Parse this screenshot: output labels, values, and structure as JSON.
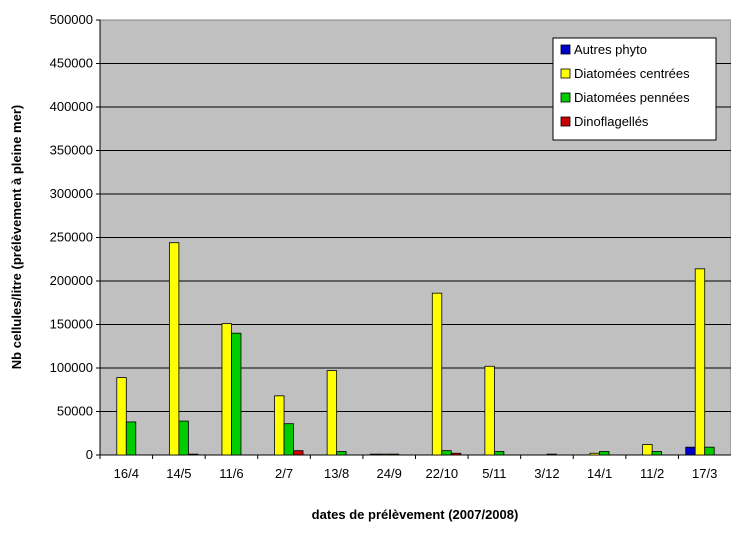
{
  "chart_data": {
    "type": "bar",
    "title": "",
    "xlabel": "dates de prélèvement (2007/2008)",
    "ylabel": "Nb cellules/litre (prélèvement à pleine mer)",
    "ylim": [
      0,
      500000
    ],
    "yticks": [
      "0",
      "50000",
      "100000",
      "150000",
      "200000",
      "250000",
      "300000",
      "350000",
      "400000",
      "450000",
      "500000"
    ],
    "categories": [
      "16/4",
      "14/5",
      "11/6",
      "2/7",
      "13/8",
      "24/9",
      "22/10",
      "5/11",
      "3/12",
      "14/1",
      "11/2",
      "17/3"
    ],
    "grid": true,
    "legend_position": "top-right",
    "series": [
      {
        "name": "Autres phyto",
        "color": "#0000cc",
        "values": [
          0,
          0,
          0,
          0,
          0,
          1000,
          0,
          0,
          0,
          0,
          0,
          9000
        ]
      },
      {
        "name": "Diatomées centrées",
        "color": "#ffff00",
        "values": [
          89000,
          244000,
          151000,
          68000,
          97000,
          1000,
          186000,
          102000,
          0,
          2000,
          12000,
          214000
        ]
      },
      {
        "name": "Diatomées pennées",
        "color": "#00cc00",
        "values": [
          38000,
          39000,
          140000,
          36000,
          4000,
          1000,
          5000,
          4000,
          1000,
          4000,
          4000,
          9000
        ]
      },
      {
        "name": "Dinoflagellés",
        "color": "#cc0000",
        "values": [
          0,
          1000,
          0,
          5000,
          0,
          0,
          2000,
          0,
          0,
          0,
          0,
          0
        ]
      }
    ]
  }
}
